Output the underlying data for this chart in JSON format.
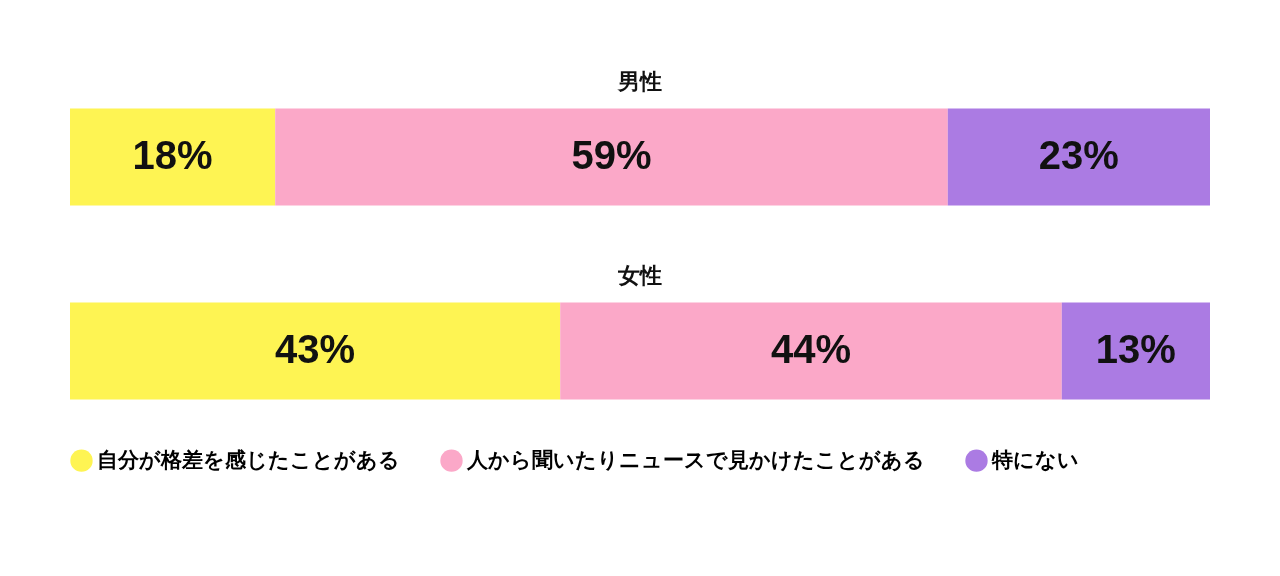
{
  "chart_data": {
    "type": "bar",
    "orientation": "horizontal",
    "stacked": true,
    "categories": [
      "男性",
      "女性"
    ],
    "legend": "bottom",
    "series": [
      {
        "name": "自分が格差を感じたことがある",
        "color": "#fef453",
        "values": [
          18,
          43
        ],
        "value_labels": [
          "18%",
          "43%"
        ]
      },
      {
        "name": "人から聞いたりニュースで見かけたことがある",
        "color": "#fba8c8",
        "values": [
          59,
          44
        ],
        "value_labels": [
          "59%",
          "44%"
        ]
      },
      {
        "name": "特にない",
        "color": "#ab7be3",
        "values": [
          23,
          13
        ],
        "value_labels": [
          "23%",
          "13%"
        ]
      }
    ]
  }
}
